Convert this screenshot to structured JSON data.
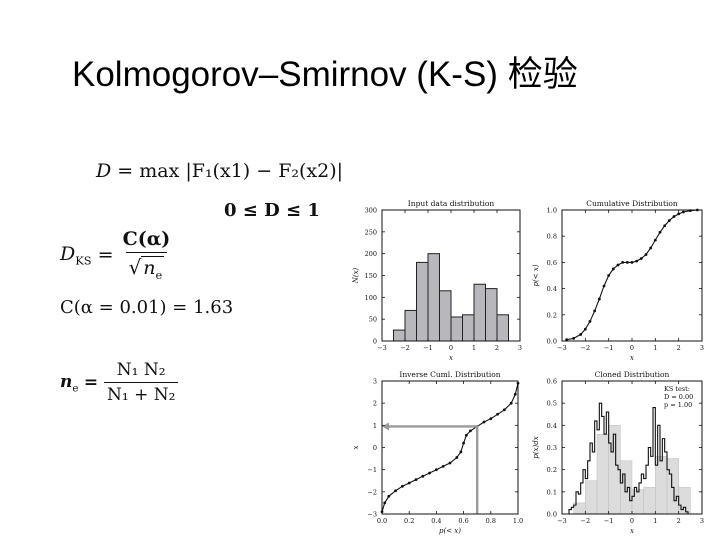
{
  "slide": {
    "title": "Kolmogorov–Smirnov (K-S) 检验"
  },
  "equations": {
    "d_max": {
      "lhs": "D",
      "eq": "=",
      "op": "max",
      "body": "|F₁(x1) − F₂(x2)|"
    },
    "d_range": {
      "text": "0 ≤ D ≤ 1"
    },
    "d_ks": {
      "lhs": "D",
      "lhs_sub": "KS",
      "numerator": "C(α)",
      "denominator_sym": "n",
      "denominator_sub": "e"
    },
    "c_alpha": {
      "text": "C(α = 0.01) = 1.63"
    },
    "n_e": {
      "lhs": "n",
      "lhs_sub": "e",
      "numerator": "N₁ N₂",
      "denominator": "N₁ + N₂"
    }
  },
  "chart_data": [
    {
      "type": "bar",
      "title": "Input data distribution",
      "xlabel": "x",
      "ylabel": "N(x)",
      "xlim": [
        -3,
        3
      ],
      "ylim": [
        0,
        300
      ],
      "xticks": [
        -3,
        -2,
        -1,
        0,
        1,
        2,
        3
      ],
      "yticks": [
        0,
        50,
        100,
        150,
        200,
        250,
        300
      ],
      "bin_edges": [
        -2.5,
        -2.0,
        -1.5,
        -1.0,
        -0.5,
        0.0,
        0.5,
        1.0,
        1.5,
        2.0,
        2.5
      ],
      "values": [
        25,
        70,
        180,
        200,
        115,
        55,
        60,
        130,
        120,
        60
      ],
      "bar_color": "#b8b8bc"
    },
    {
      "type": "line",
      "title": "Cumulative Distribution",
      "xlabel": "x",
      "ylabel": "p(< x)",
      "xlim": [
        -3,
        3
      ],
      "ylim": [
        0,
        1.0
      ],
      "xticks": [
        -3,
        -2,
        -1,
        0,
        1,
        2,
        3
      ],
      "yticks": [
        0.0,
        0.2,
        0.4,
        0.6,
        0.8,
        1.0
      ],
      "x": [
        -2.8,
        -2.5,
        -2.2,
        -2.0,
        -1.8,
        -1.6,
        -1.4,
        -1.2,
        -1.0,
        -0.8,
        -0.6,
        -0.4,
        -0.2,
        0.0,
        0.2,
        0.4,
        0.6,
        0.8,
        1.0,
        1.2,
        1.4,
        1.6,
        1.8,
        2.0,
        2.2,
        2.5,
        2.8
      ],
      "y": [
        0.01,
        0.02,
        0.05,
        0.09,
        0.15,
        0.23,
        0.32,
        0.42,
        0.5,
        0.55,
        0.58,
        0.6,
        0.6,
        0.6,
        0.61,
        0.63,
        0.66,
        0.71,
        0.77,
        0.83,
        0.88,
        0.92,
        0.95,
        0.97,
        0.985,
        0.995,
        1.0
      ]
    },
    {
      "type": "line",
      "title": "Inverse Cuml. Distribution",
      "xlabel": "p(< x)",
      "ylabel": "x",
      "xlim": [
        0,
        1.0
      ],
      "ylim": [
        -3,
        3
      ],
      "xticks": [
        0.0,
        0.2,
        0.4,
        0.6,
        0.8,
        1.0
      ],
      "yticks": [
        -3,
        -2,
        -1,
        0,
        1,
        2,
        3
      ],
      "x": [
        0.0,
        0.02,
        0.05,
        0.1,
        0.15,
        0.2,
        0.25,
        0.3,
        0.35,
        0.4,
        0.45,
        0.5,
        0.55,
        0.58,
        0.6,
        0.62,
        0.65,
        0.7,
        0.75,
        0.8,
        0.85,
        0.9,
        0.95,
        0.98,
        1.0
      ],
      "y": [
        -2.9,
        -2.5,
        -2.2,
        -1.95,
        -1.75,
        -1.6,
        -1.45,
        -1.3,
        -1.15,
        -1.0,
        -0.85,
        -0.7,
        -0.45,
        -0.2,
        0.2,
        0.55,
        0.75,
        0.95,
        1.15,
        1.3,
        1.5,
        1.7,
        2.0,
        2.4,
        2.9
      ],
      "annotation": {
        "p": 0.7,
        "x": 0.95
      },
      "arrow_color": "#9a9a9a"
    },
    {
      "type": "bar",
      "title": "Cloned Distribution",
      "xlabel": "x",
      "ylabel": "p(x)dx",
      "xlim": [
        -3,
        3
      ],
      "ylim": [
        0,
        0.6
      ],
      "xticks": [
        -3,
        -2,
        -1,
        0,
        1,
        2,
        3
      ],
      "yticks": [
        0.0,
        0.1,
        0.2,
        0.3,
        0.4,
        0.5,
        0.6
      ],
      "text_lines": [
        "KS test:",
        "D = 0.00",
        "p = 1.00"
      ],
      "bin_edges": [
        -2.5,
        -2.0,
        -1.5,
        -1.0,
        -0.5,
        0.0,
        0.5,
        1.0,
        1.5,
        2.0,
        2.5
      ],
      "values": [
        0.05,
        0.15,
        0.36,
        0.4,
        0.24,
        0.11,
        0.12,
        0.26,
        0.25,
        0.12
      ],
      "bar_color": "#dcdcdc",
      "fine_bin_width": 0.1,
      "fine_x_start": -2.8,
      "fine_values": [
        0.0,
        0.02,
        0.03,
        0.04,
        0.1,
        0.09,
        0.14,
        0.2,
        0.16,
        0.24,
        0.32,
        0.28,
        0.42,
        0.38,
        0.5,
        0.44,
        0.36,
        0.46,
        0.32,
        0.28,
        0.36,
        0.22,
        0.2,
        0.14,
        0.18,
        0.1,
        0.12,
        0.06,
        0.08,
        0.12,
        0.1,
        0.14,
        0.18,
        0.16,
        0.22,
        0.3,
        0.26,
        0.48,
        0.22,
        0.4,
        0.24,
        0.34,
        0.28,
        0.2,
        0.18,
        0.12,
        0.06,
        0.08,
        0.04,
        0.02,
        0.03,
        0.01,
        0.0,
        0.0,
        0.0,
        0.0
      ]
    }
  ]
}
